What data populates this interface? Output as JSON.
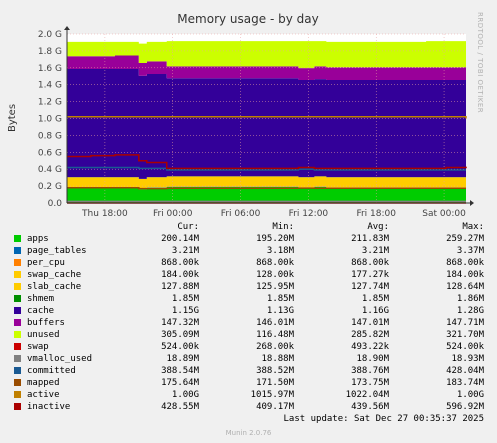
{
  "chart_data": {
    "type": "area",
    "title": "Memory usage - by day",
    "ylabel": "Bytes",
    "watermark": "RRDTOOL / TOBI OETIKER",
    "ylim": [
      0,
      2.0
    ],
    "yticks": [
      "0.0",
      "0.2 G",
      "0.4 G",
      "0.6 G",
      "0.8 G",
      "1.0 G",
      "1.2 G",
      "1.4 G",
      "1.6 G",
      "1.8 G",
      "2.0 G"
    ],
    "xticks": [
      "Thu 18:00",
      "Fri 00:00",
      "Fri 06:00",
      "Fri 12:00",
      "Fri 18:00",
      "Sat 00:00"
    ],
    "x": [
      0,
      0.06,
      0.12,
      0.18,
      0.2,
      0.25,
      0.35,
      0.45,
      0.55,
      0.58,
      0.62,
      0.65,
      0.7,
      0.75,
      0.8,
      0.85,
      0.9,
      0.95,
      1.0
    ],
    "stacked_series": [
      {
        "name": "apps",
        "color": "#00cc00",
        "values": [
          0.18,
          0.18,
          0.18,
          0.16,
          0.18,
          0.19,
          0.19,
          0.19,
          0.19,
          0.18,
          0.19,
          0.18,
          0.18,
          0.18,
          0.18,
          0.18,
          0.18,
          0.18,
          0.18
        ]
      },
      {
        "name": "page_tables",
        "color": "#0066b3",
        "values": [
          0.003,
          0.003,
          0.003,
          0.003,
          0.003,
          0.003,
          0.003,
          0.003,
          0.003,
          0.003,
          0.003,
          0.003,
          0.003,
          0.003,
          0.003,
          0.003,
          0.003,
          0.003,
          0.003
        ]
      },
      {
        "name": "per_cpu",
        "color": "#ff8000",
        "values": [
          0.001,
          0.001,
          0.001,
          0.001,
          0.001,
          0.001,
          0.001,
          0.001,
          0.001,
          0.001,
          0.001,
          0.001,
          0.001,
          0.001,
          0.001,
          0.001,
          0.001,
          0.001,
          0.001
        ]
      },
      {
        "name": "swap_cache",
        "color": "#ffcc00",
        "values": [
          0.0002,
          0.0002,
          0.0002,
          0.0002,
          0.0002,
          0.0002,
          0.0002,
          0.0002,
          0.0002,
          0.0002,
          0.0002,
          0.0002,
          0.0002,
          0.0002,
          0.0002,
          0.0002,
          0.0002,
          0.0002,
          0.0002
        ]
      },
      {
        "name": "slab_cache",
        "color": "#ffcc00",
        "values": [
          0.12,
          0.12,
          0.12,
          0.12,
          0.12,
          0.12,
          0.12,
          0.12,
          0.12,
          0.12,
          0.12,
          0.12,
          0.12,
          0.12,
          0.12,
          0.12,
          0.12,
          0.12,
          0.12
        ]
      },
      {
        "name": "shmem",
        "color": "#008f00",
        "values": [
          0.002,
          0.002,
          0.002,
          0.002,
          0.002,
          0.002,
          0.002,
          0.002,
          0.002,
          0.002,
          0.002,
          0.002,
          0.002,
          0.002,
          0.002,
          0.002,
          0.002,
          0.002,
          0.002
        ]
      },
      {
        "name": "cache",
        "color": "#330099",
        "values": [
          1.28,
          1.28,
          1.28,
          1.22,
          1.22,
          1.16,
          1.16,
          1.16,
          1.16,
          1.15,
          1.15,
          1.15,
          1.15,
          1.15,
          1.15,
          1.15,
          1.15,
          1.15,
          1.15
        ]
      },
      {
        "name": "buffers",
        "color": "#990099",
        "values": [
          0.15,
          0.15,
          0.16,
          0.15,
          0.15,
          0.14,
          0.14,
          0.14,
          0.14,
          0.14,
          0.15,
          0.15,
          0.15,
          0.15,
          0.15,
          0.15,
          0.15,
          0.15,
          0.15
        ]
      },
      {
        "name": "unused",
        "color": "#ccff00",
        "values": [
          0.17,
          0.17,
          0.16,
          0.23,
          0.23,
          0.3,
          0.3,
          0.3,
          0.3,
          0.32,
          0.3,
          0.3,
          0.3,
          0.3,
          0.3,
          0.3,
          0.31,
          0.31,
          0.31
        ]
      }
    ],
    "line_series": [
      {
        "name": "committed",
        "color": "#1a5a92",
        "values": [
          0.42,
          0.42,
          0.42,
          0.41,
          0.41,
          0.39,
          0.39,
          0.39,
          0.39,
          0.4,
          0.39,
          0.39,
          0.39,
          0.39,
          0.39,
          0.39,
          0.39,
          0.39,
          0.39
        ]
      },
      {
        "name": "mapped",
        "color": "#994c00",
        "values": [
          0.18,
          0.18,
          0.18,
          0.17,
          0.17,
          0.175,
          0.175,
          0.175,
          0.175,
          0.176,
          0.175,
          0.175,
          0.175,
          0.175,
          0.175,
          0.175,
          0.175,
          0.175,
          0.175
        ]
      },
      {
        "name": "active",
        "color": "#c08000",
        "values": [
          1.02,
          1.02,
          1.02,
          1.02,
          1.02,
          1.02,
          1.02,
          1.02,
          1.02,
          1.02,
          1.02,
          1.02,
          1.02,
          1.02,
          1.02,
          1.02,
          1.02,
          1.02,
          1.0
        ]
      },
      {
        "name": "inactive",
        "color": "#aa0000",
        "values": [
          0.55,
          0.56,
          0.57,
          0.5,
          0.48,
          0.41,
          0.41,
          0.41,
          0.41,
          0.42,
          0.41,
          0.41,
          0.41,
          0.41,
          0.41,
          0.41,
          0.41,
          0.42,
          0.43
        ]
      },
      {
        "name": "swap",
        "color": "#cc0000",
        "values": [
          0.0005,
          0.0005,
          0.0005,
          0.0005,
          0.0005,
          0.0005,
          0.0005,
          0.0005,
          0.0005,
          0.0005,
          0.0005,
          0.0005,
          0.0005,
          0.0005,
          0.0005,
          0.0005,
          0.0005,
          0.0005,
          0.0005
        ]
      },
      {
        "name": "vmalloc_used",
        "color": "#808080",
        "values": [
          0.019,
          0.019,
          0.019,
          0.019,
          0.019,
          0.019,
          0.019,
          0.019,
          0.019,
          0.019,
          0.019,
          0.019,
          0.019,
          0.019,
          0.019,
          0.019,
          0.019,
          0.019,
          0.019
        ]
      }
    ],
    "legend_headers": [
      "Cur:",
      "Min:",
      "Avg:",
      "Max:"
    ],
    "legend": [
      {
        "name": "apps",
        "color": "#00cc00",
        "cur": "200.14M",
        "min": "195.20M",
        "avg": "211.83M",
        "max": "259.27M"
      },
      {
        "name": "page_tables",
        "color": "#0066b3",
        "cur": "3.21M",
        "min": "3.18M",
        "avg": "3.21M",
        "max": "3.37M"
      },
      {
        "name": "per_cpu",
        "color": "#ff8000",
        "cur": "868.00k",
        "min": "868.00k",
        "avg": "868.00k",
        "max": "868.00k"
      },
      {
        "name": "swap_cache",
        "color": "#ffcc00",
        "cur": "184.00k",
        "min": "128.00k",
        "avg": "177.27k",
        "max": "184.00k"
      },
      {
        "name": "slab_cache",
        "color": "#ffcc00",
        "cur": "127.88M",
        "min": "125.95M",
        "avg": "127.74M",
        "max": "128.64M"
      },
      {
        "name": "shmem",
        "color": "#008f00",
        "cur": "1.85M",
        "min": "1.85M",
        "avg": "1.85M",
        "max": "1.86M"
      },
      {
        "name": "cache",
        "color": "#330099",
        "cur": "1.15G",
        "min": "1.13G",
        "avg": "1.16G",
        "max": "1.28G"
      },
      {
        "name": "buffers",
        "color": "#990099",
        "cur": "147.32M",
        "min": "146.01M",
        "avg": "147.01M",
        "max": "147.71M"
      },
      {
        "name": "unused",
        "color": "#ccff00",
        "cur": "305.09M",
        "min": "116.48M",
        "avg": "285.82M",
        "max": "321.70M"
      },
      {
        "name": "swap",
        "color": "#cc0000",
        "cur": "524.00k",
        "min": "268.00k",
        "avg": "493.22k",
        "max": "524.00k"
      },
      {
        "name": "vmalloc_used",
        "color": "#808080",
        "cur": "18.89M",
        "min": "18.88M",
        "avg": "18.90M",
        "max": "18.93M"
      },
      {
        "name": "committed",
        "color": "#1a5a92",
        "cur": "388.54M",
        "min": "388.52M",
        "avg": "388.76M",
        "max": "428.04M"
      },
      {
        "name": "mapped",
        "color": "#994c00",
        "cur": "175.64M",
        "min": "171.50M",
        "avg": "173.75M",
        "max": "183.74M"
      },
      {
        "name": "active",
        "color": "#c08000",
        "cur": "1.00G",
        "min": "1015.97M",
        "avg": "1022.04M",
        "max": "1.00G"
      },
      {
        "name": "inactive",
        "color": "#aa0000",
        "cur": "428.55M",
        "min": "409.17M",
        "avg": "439.56M",
        "max": "596.92M"
      }
    ],
    "last_update": "Last update: Sat Dec 27 00:35:37 2025",
    "footer_credit": "Munin 2.0.76"
  }
}
